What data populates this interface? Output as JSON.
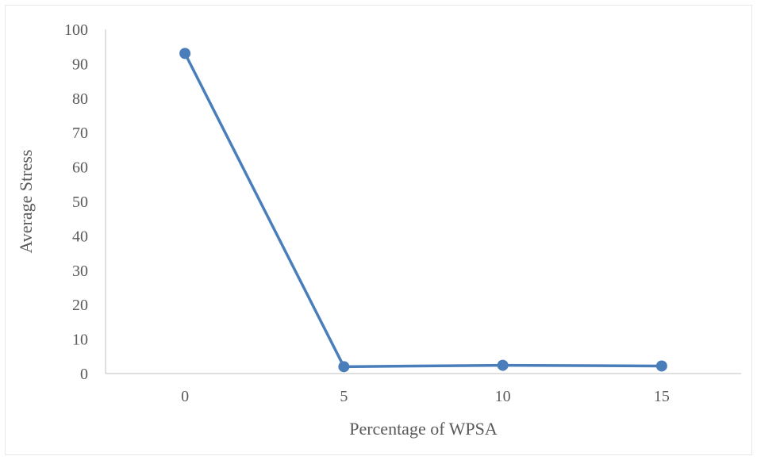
{
  "chart_data": {
    "type": "line",
    "title": "",
    "xlabel": "Percentage of WPSA",
    "ylabel": "Average Stress",
    "categories": [
      "0",
      "5",
      "10",
      "15"
    ],
    "series": [
      {
        "values": [
          93,
          2,
          2.4,
          2.2
        ],
        "color": "#4a7ebb"
      }
    ],
    "ylim": [
      0,
      100
    ],
    "yticks": [
      0,
      10,
      20,
      30,
      40,
      50,
      60,
      70,
      80,
      90,
      100
    ],
    "grid": false,
    "legend": "none"
  }
}
